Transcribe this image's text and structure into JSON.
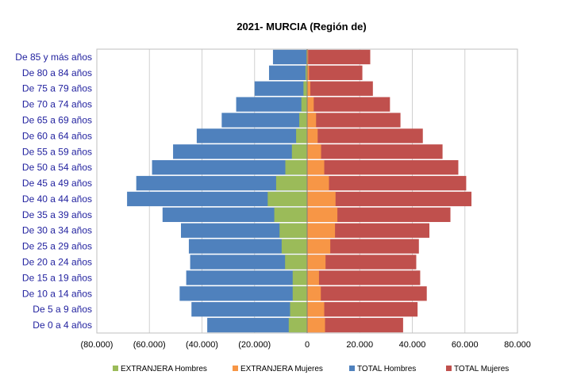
{
  "chart_data": {
    "type": "bar",
    "orientation": "horizontal",
    "layout": "population-pyramid",
    "title": "2021- MURCIA (Región de)",
    "categories": [
      "De 85 y más años",
      "De 80 a 84 años",
      "De 75 a 79 años",
      "De 70 a 74 años",
      "De 65 a 69 años",
      "De 60 a 64 años",
      "De 55 a 59 años",
      "De 50 a 54 años",
      "De 45 a 49 años",
      "De 40 a 44 años",
      "De 35 a 39 años",
      "De 30 a 34 años",
      "De 25 a 29 años",
      "De 20 a 24 años",
      "De 15 a 19 años",
      "De 10 a 14 años",
      "De 5 a 9 años",
      "De 0 a 4 años"
    ],
    "xlim": [
      -80000,
      80000
    ],
    "x_ticks": [
      -80000,
      -60000,
      -40000,
      -20000,
      0,
      20000,
      40000,
      60000,
      80000
    ],
    "x_tick_labels": [
      "(80.000)",
      "(60.000)",
      "(40.000)",
      "(20.000)",
      "0",
      "20.000",
      "40.000",
      "60.000",
      "80.000"
    ],
    "grid": true,
    "legend_position": "bottom",
    "series": [
      {
        "name": "TOTAL Hombres",
        "color": "#4f81bd",
        "values": [
          -13000,
          -14500,
          -20000,
          -27000,
          -32500,
          -42000,
          -51000,
          -59000,
          -65000,
          -68500,
          -55000,
          -48000,
          -45000,
          -44500,
          -46000,
          -48500,
          -44000,
          -38000
        ]
      },
      {
        "name": "TOTAL Mujeres",
        "color": "#c0504d",
        "values": [
          24000,
          21000,
          25000,
          31500,
          35500,
          44000,
          51500,
          57500,
          60500,
          62500,
          54500,
          46500,
          42500,
          41500,
          43000,
          45500,
          42000,
          36500
        ]
      },
      {
        "name": "EXTRANJERA Hombres",
        "color": "#9bbb59",
        "values": [
          -300,
          -600,
          -1400,
          -2200,
          -3000,
          -4200,
          -5800,
          -8300,
          -11800,
          -15000,
          -12500,
          -10500,
          -9700,
          -8400,
          -5500,
          -5500,
          -6500,
          -7000
        ]
      },
      {
        "name": "EXTRANJERA Mujeres",
        "color": "#f79646",
        "values": [
          400,
          700,
          1200,
          2500,
          3400,
          4000,
          5300,
          6500,
          8300,
          10800,
          11500,
          10600,
          8800,
          7000,
          4500,
          5200,
          6500,
          6800
        ]
      }
    ],
    "legend_order": [
      "EXTRANJERA Hombres",
      "EXTRANJERA Mujeres",
      "TOTAL Hombres",
      "TOTAL Mujeres"
    ]
  }
}
